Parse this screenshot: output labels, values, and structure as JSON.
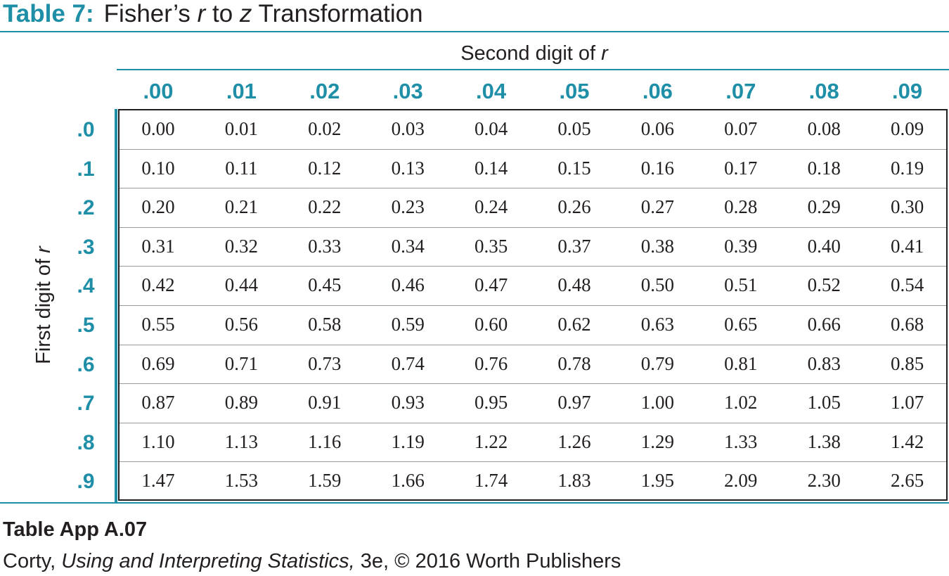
{
  "title": {
    "tag": "Table 7:",
    "text_before": "Fisher’s ",
    "r": "r",
    "text_mid": " to ",
    "z": "z",
    "text_after": " Transformation"
  },
  "column_group_label": {
    "text": "Second digit of ",
    "var": "r"
  },
  "row_group_label": {
    "text": "First digit of ",
    "var": "r"
  },
  "column_headers": [
    ".00",
    ".01",
    ".02",
    ".03",
    ".04",
    ".05",
    ".06",
    ".07",
    ".08",
    ".09"
  ],
  "row_headers": [
    ".0",
    ".1",
    ".2",
    ".3",
    ".4",
    ".5",
    ".6",
    ".7",
    ".8",
    ".9"
  ],
  "rows": [
    [
      "0.00",
      "0.01",
      "0.02",
      "0.03",
      "0.04",
      "0.05",
      "0.06",
      "0.07",
      "0.08",
      "0.09"
    ],
    [
      "0.10",
      "0.11",
      "0.12",
      "0.13",
      "0.14",
      "0.15",
      "0.16",
      "0.17",
      "0.18",
      "0.19"
    ],
    [
      "0.20",
      "0.21",
      "0.22",
      "0.23",
      "0.24",
      "0.26",
      "0.27",
      "0.28",
      "0.29",
      "0.30"
    ],
    [
      "0.31",
      "0.32",
      "0.33",
      "0.34",
      "0.35",
      "0.37",
      "0.38",
      "0.39",
      "0.40",
      "0.41"
    ],
    [
      "0.42",
      "0.44",
      "0.45",
      "0.46",
      "0.47",
      "0.48",
      "0.50",
      "0.51",
      "0.52",
      "0.54"
    ],
    [
      "0.55",
      "0.56",
      "0.58",
      "0.59",
      "0.60",
      "0.62",
      "0.63",
      "0.65",
      "0.66",
      "0.68"
    ],
    [
      "0.69",
      "0.71",
      "0.73",
      "0.74",
      "0.76",
      "0.78",
      "0.79",
      "0.81",
      "0.83",
      "0.85"
    ],
    [
      "0.87",
      "0.89",
      "0.91",
      "0.93",
      "0.95",
      "0.97",
      "1.00",
      "1.02",
      "1.05",
      "1.07"
    ],
    [
      "1.10",
      "1.13",
      "1.16",
      "1.19",
      "1.22",
      "1.26",
      "1.29",
      "1.33",
      "1.38",
      "1.42"
    ],
    [
      "1.47",
      "1.53",
      "1.59",
      "1.66",
      "1.74",
      "1.83",
      "1.95",
      "2.09",
      "2.30",
      "2.65"
    ]
  ],
  "caption": {
    "label": "Table App A.07",
    "author": "Corty, ",
    "book": "Using and Interpreting Statistics,",
    "rest": " 3e, © 2016 Worth Publishers"
  },
  "colors": {
    "accent": "#1f8fa8",
    "text": "#231f20",
    "row_rule": "#9a9a9a"
  }
}
